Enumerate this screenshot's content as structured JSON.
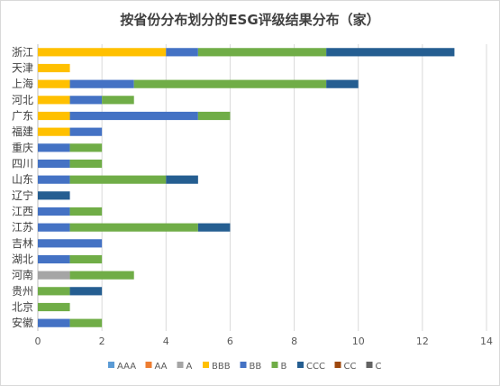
{
  "chart_data": {
    "type": "bar",
    "orientation": "horizontal",
    "stacked": true,
    "title": "按省份分布划分的ESG评级结果分布（家）",
    "xlabel": "",
    "ylabel": "",
    "xlim": [
      0,
      14
    ],
    "x_ticks": [
      "0",
      "2",
      "4",
      "6",
      "8",
      "10",
      "12",
      "14"
    ],
    "grid": "vertical",
    "legend_position": "bottom",
    "categories": [
      "浙江",
      "天津",
      "上海",
      "河北",
      "广东",
      "福建",
      "重庆",
      "四川",
      "山东",
      "辽宁",
      "江西",
      "江苏",
      "吉林",
      "湖北",
      "河南",
      "贵州",
      "北京",
      "安徽"
    ],
    "series": [
      {
        "name": "AAA",
        "color": "#5b9bd5",
        "values": [
          0,
          0,
          0,
          0,
          0,
          0,
          0,
          0,
          0,
          0,
          0,
          0,
          0,
          0,
          0,
          0,
          0,
          0
        ]
      },
      {
        "name": "AA",
        "color": "#ed7d31",
        "values": [
          0,
          0,
          0,
          0,
          0,
          0,
          0,
          0,
          0,
          0,
          0,
          0,
          0,
          0,
          0,
          0,
          0,
          0
        ]
      },
      {
        "name": "A",
        "color": "#a5a5a5",
        "values": [
          0,
          0,
          0,
          0,
          0,
          0,
          0,
          0,
          0,
          0,
          0,
          0,
          0,
          0,
          1,
          0,
          0,
          0
        ]
      },
      {
        "name": "BBB",
        "color": "#ffc000",
        "values": [
          4,
          1,
          1,
          1,
          1,
          1,
          0,
          0,
          0,
          0,
          0,
          0,
          0,
          0,
          0,
          0,
          0,
          0
        ]
      },
      {
        "name": "BB",
        "color": "#4472c4",
        "values": [
          1,
          0,
          2,
          1,
          4,
          1,
          1,
          1,
          1,
          0,
          1,
          1,
          2,
          1,
          0,
          0,
          0,
          1
        ]
      },
      {
        "name": "B",
        "color": "#70ad47",
        "values": [
          4,
          0,
          6,
          1,
          1,
          0,
          1,
          1,
          3,
          0,
          1,
          4,
          0,
          1,
          2,
          1,
          1,
          1
        ]
      },
      {
        "name": "CCC",
        "color": "#255e91",
        "values": [
          4,
          0,
          1,
          0,
          0,
          0,
          0,
          0,
          1,
          1,
          0,
          1,
          0,
          0,
          0,
          1,
          0,
          0
        ]
      },
      {
        "name": "CC",
        "color": "#9e480e",
        "values": [
          0,
          0,
          0,
          0,
          0,
          0,
          0,
          0,
          0,
          0,
          0,
          0,
          0,
          0,
          0,
          0,
          0,
          0
        ]
      },
      {
        "name": "C",
        "color": "#636363",
        "values": [
          0,
          0,
          0,
          0,
          0,
          0,
          0,
          0,
          0,
          0,
          0,
          0,
          0,
          0,
          0,
          0,
          0,
          0
        ]
      }
    ]
  }
}
